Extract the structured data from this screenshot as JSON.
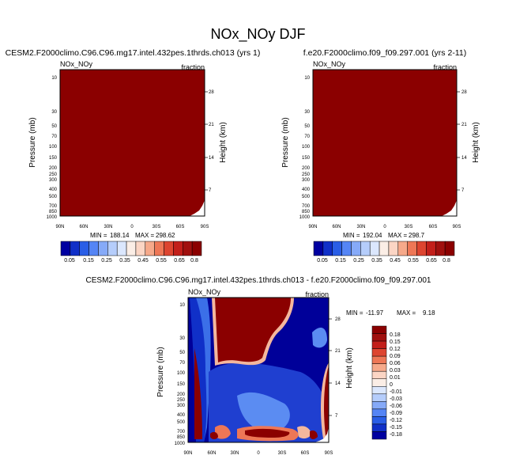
{
  "figure": {
    "title": "NOx_NOy DJF"
  },
  "colors": {
    "dark_red": "#8b0000",
    "dark_blue": "#000099",
    "white": "#ffffff"
  },
  "chart_data": [
    {
      "type": "heatmap",
      "title": "CESM2.F2000climo.C96.C96.mg17.intel.432pes.1thrds.ch013 (yrs 1)",
      "left_label": "NOx_NOy",
      "right_label": "fraction",
      "xlabel": "",
      "ylabel": "Pressure (mb)",
      "right_axis_label": "Height (km)",
      "x_ticks": [
        "90N",
        "60N",
        "30N",
        "0",
        "30S",
        "60S",
        "90S"
      ],
      "y_ticks": [
        "10",
        "30",
        "50",
        "70",
        "100",
        "150",
        "200",
        "250",
        "300",
        "400",
        "500",
        "700",
        "850",
        "1000"
      ],
      "height_ticks": [
        "28",
        "21",
        "14",
        "7"
      ],
      "ylim": [
        1000,
        10
      ],
      "log_scale_y": true,
      "min": 188.14,
      "max": 298.62,
      "field_description": "uniform",
      "colorbar_labels": [
        "0.05",
        "0.15",
        "0.25",
        "0.35",
        "0.45",
        "0.55",
        "0.65",
        "0.8"
      ]
    },
    {
      "type": "heatmap",
      "title": "f.e20.F2000climo.f09_f09.297.001 (yrs 2-11)",
      "left_label": "NOx_NOy",
      "right_label": "fraction",
      "xlabel": "",
      "ylabel": "Pressure (mb)",
      "right_axis_label": "Height (km)",
      "x_ticks": [
        "90N",
        "60N",
        "30N",
        "0",
        "30S",
        "60S",
        "90S"
      ],
      "y_ticks": [
        "10",
        "30",
        "50",
        "70",
        "100",
        "150",
        "200",
        "250",
        "300",
        "400",
        "500",
        "700",
        "850",
        "1000"
      ],
      "height_ticks": [
        "28",
        "21",
        "14",
        "7"
      ],
      "ylim": [
        1000,
        10
      ],
      "log_scale_y": true,
      "min": 192.04,
      "max": 298.7,
      "colorbar_labels": [
        "0.05",
        "0.15",
        "0.25",
        "0.35",
        "0.45",
        "0.55",
        "0.65",
        "0.8"
      ]
    },
    {
      "type": "heatmap",
      "title": "CESM2.F2000climo.C96.C96.mg17.intel.432pes.1thrds.ch013 - f.e20.F2000climo.f09_f09.297.001",
      "left_label": "NOx_NOy",
      "right_label": "fraction",
      "xlabel": "",
      "ylabel": "Pressure (mb)",
      "right_axis_label": "Height (km)",
      "x_ticks": [
        "90N",
        "60N",
        "30N",
        "0",
        "30S",
        "60S",
        "90S"
      ],
      "y_ticks": [
        "10",
        "30",
        "50",
        "70",
        "100",
        "150",
        "200",
        "250",
        "300",
        "400",
        "500",
        "700",
        "850",
        "1000"
      ],
      "height_ticks": [
        "28",
        "21",
        "14",
        "7"
      ],
      "ylim": [
        1000,
        10
      ],
      "log_scale_y": true,
      "min": -11.97,
      "max": 9.18,
      "colorbar_labels": [
        "0.18",
        "0.15",
        "0.12",
        "0.09",
        "0.06",
        "0.03",
        "0.01",
        "0",
        "-0.01",
        "-0.03",
        "-0.06",
        "-0.09",
        "-0.12",
        "-0.15",
        "-0.18"
      ]
    }
  ],
  "colorbar_colors": [
    "#0000a0",
    "#1030c8",
    "#2a5ee6",
    "#5585f5",
    "#86aaf8",
    "#b5cdfb",
    "#dbe7fd",
    "#fbeee6",
    "#fbd5c4",
    "#f6a98a",
    "#ee7756",
    "#dd4530",
    "#c21f1a",
    "#a0100e",
    "#8b0000"
  ],
  "diff_colorbar_colors": [
    "#8b0000",
    "#a0100e",
    "#c21f1a",
    "#dd4530",
    "#ee7756",
    "#f6a98a",
    "#fbd5c4",
    "#fbeee6",
    "#dbe7fd",
    "#b5cdfb",
    "#86aaf8",
    "#5585f5",
    "#2a5ee6",
    "#1030c8",
    "#0000a0"
  ]
}
